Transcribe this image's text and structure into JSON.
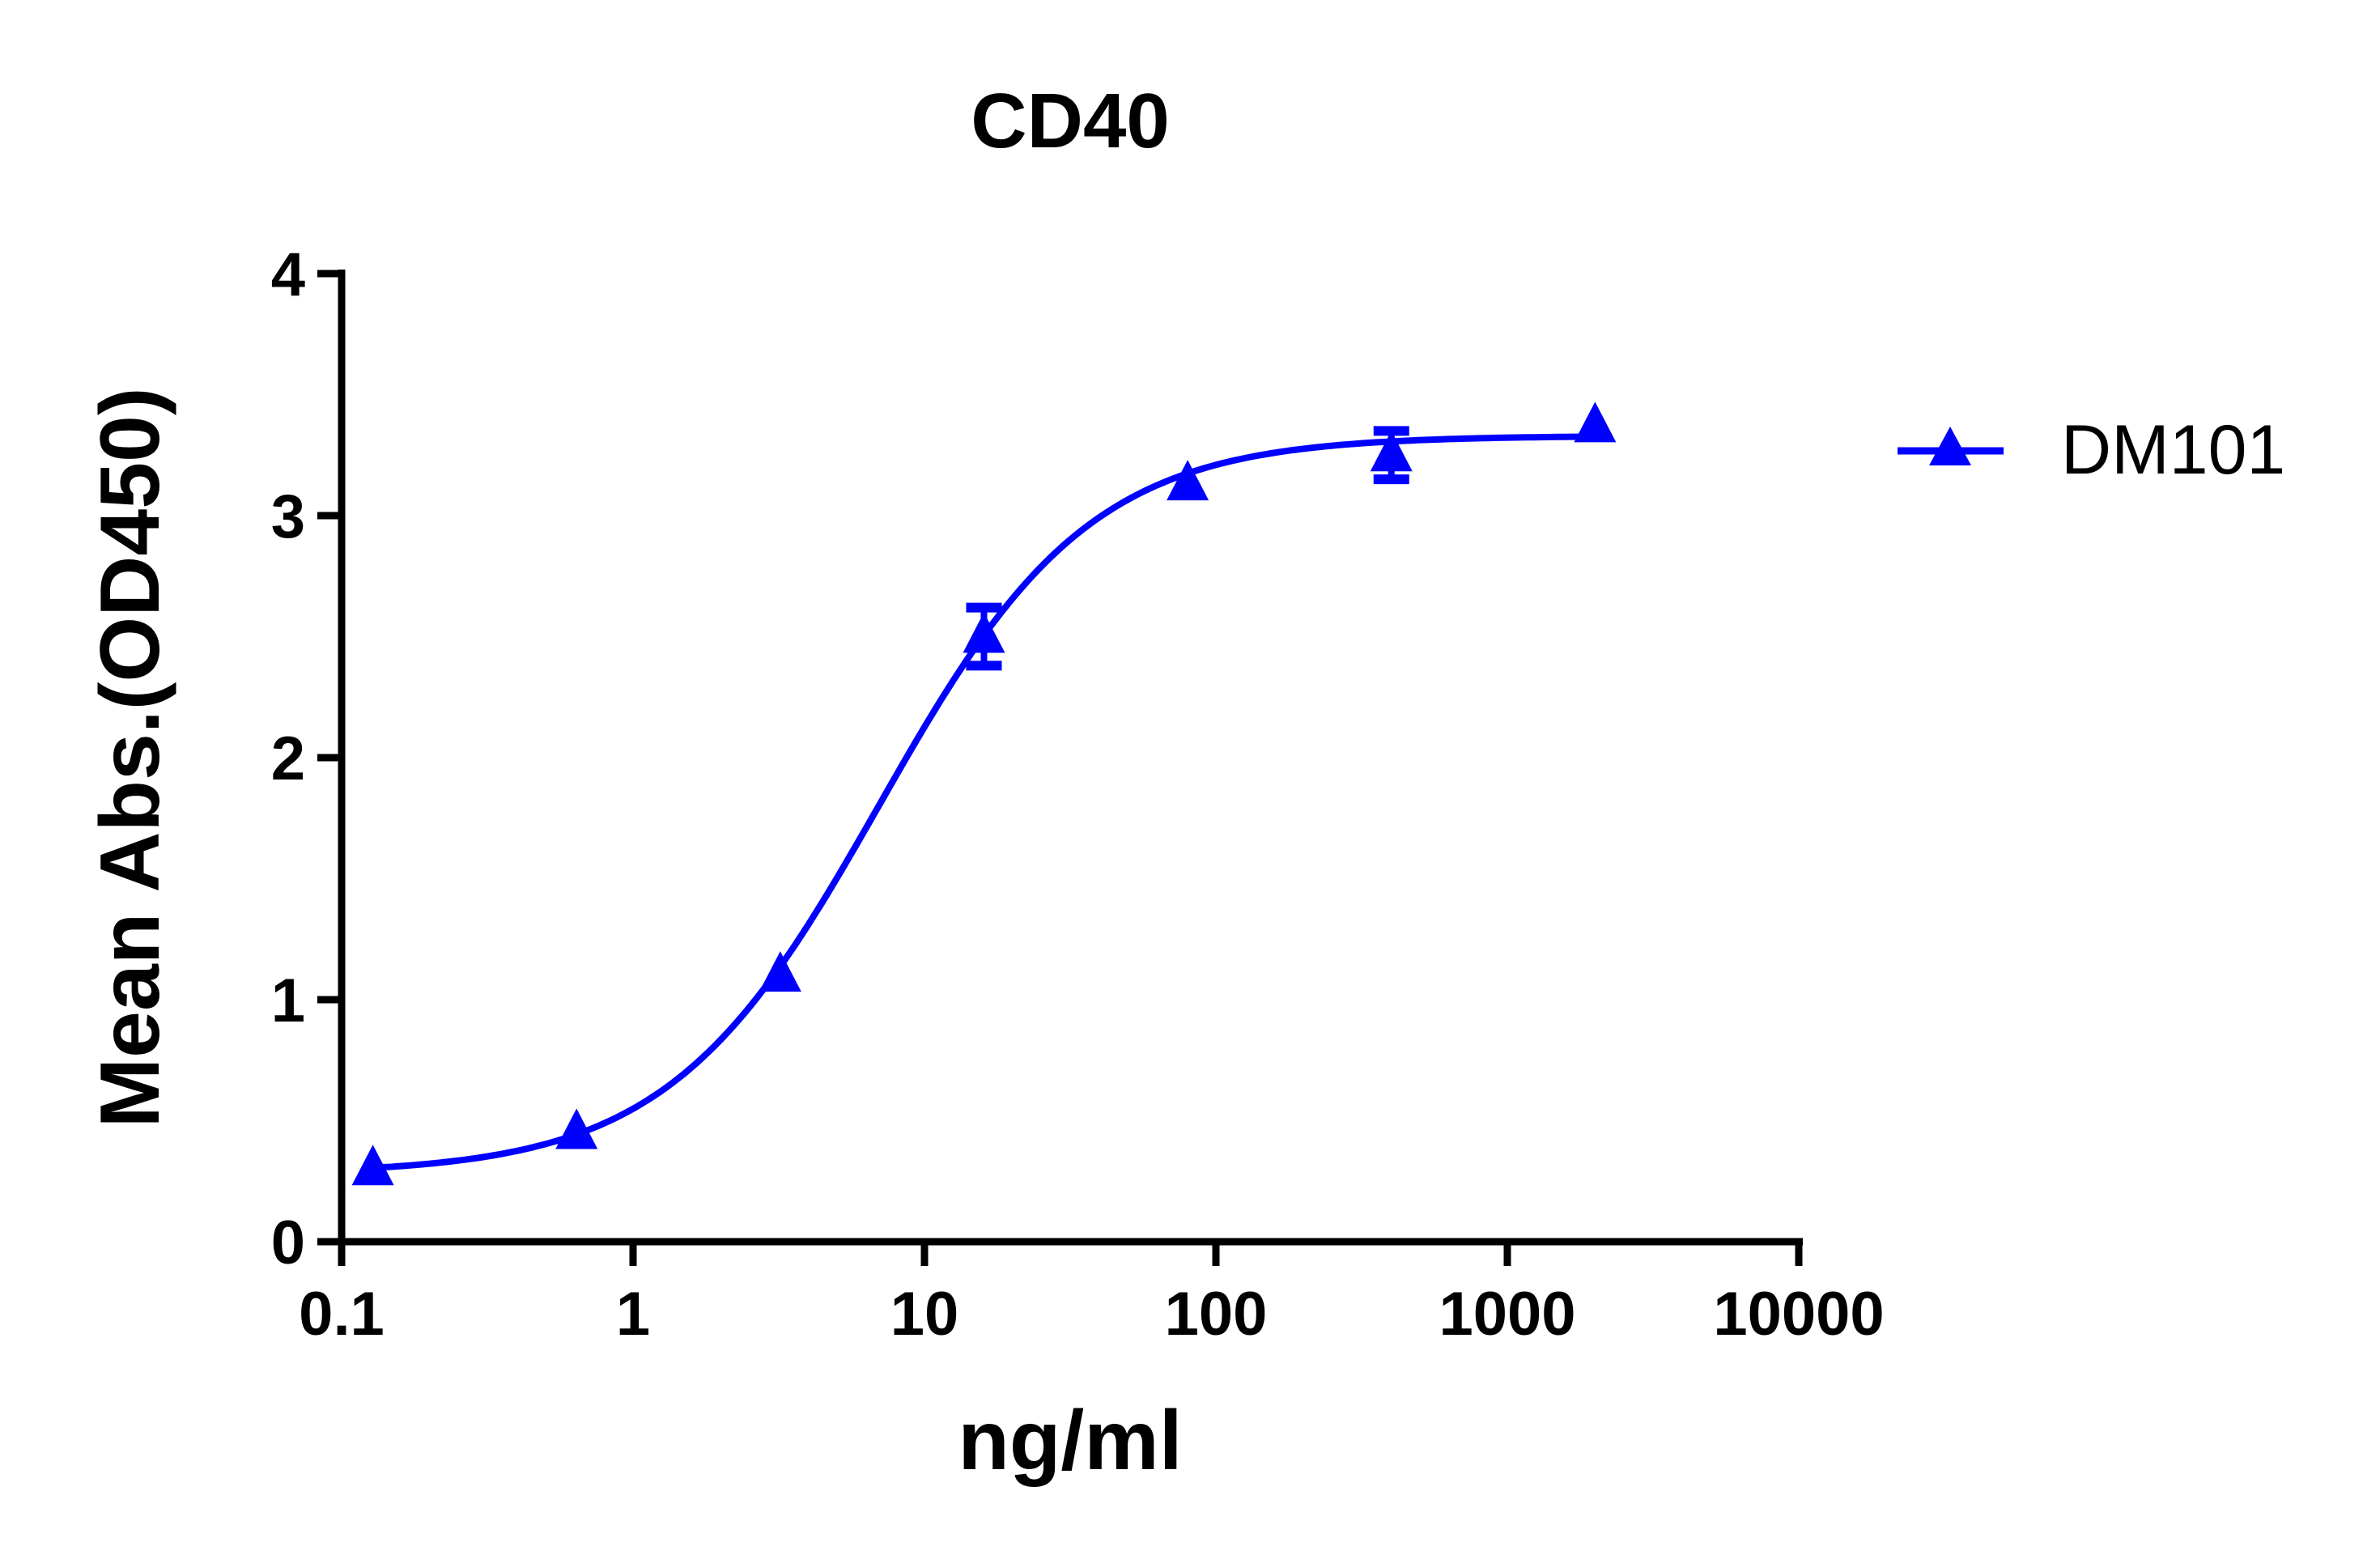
{
  "chart_data": {
    "type": "scatter",
    "title": "CD40",
    "xlabel": "ng/ml",
    "ylabel": "Mean Abs.(OD450)",
    "xscale": "log",
    "xlim": [
      0.1,
      10000
    ],
    "ylim": [
      0,
      4
    ],
    "xticks": [
      "0.1",
      "1",
      "10",
      "100",
      "1000",
      "10000"
    ],
    "yticks": [
      "0",
      "1",
      "2",
      "3",
      "4"
    ],
    "grid": false,
    "legend_position": "right",
    "series": [
      {
        "name": "DM101",
        "color": "#0000ff",
        "marker": "triangle",
        "x": [
          0.128,
          0.64,
          3.2,
          16,
          80,
          400,
          2000
        ],
        "y": [
          0.3,
          0.45,
          1.1,
          2.5,
          3.13,
          3.25,
          3.37
        ],
        "error": [
          0.02,
          0.02,
          0.02,
          0.12,
          0.02,
          0.1,
          0.02
        ],
        "fit": {
          "type": "4PL",
          "bottom": 0.28,
          "top": 3.33,
          "ec50": 7,
          "hill": 1.2
        }
      }
    ]
  }
}
